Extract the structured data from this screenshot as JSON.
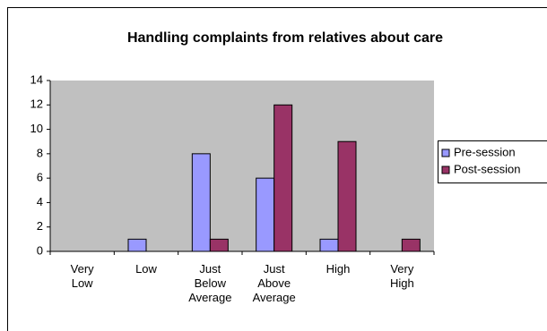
{
  "chart_data": {
    "type": "bar",
    "title": "Handling complaints from relatives about care",
    "categories": [
      "Very Low",
      "Low",
      "Just Below Average",
      "Just Above Average",
      "High",
      "Very High"
    ],
    "series": [
      {
        "name": "Pre-session",
        "color": "#9999ff",
        "values": [
          0,
          1,
          8,
          6,
          1,
          0
        ]
      },
      {
        "name": "Post-session",
        "color": "#993366",
        "values": [
          0,
          0,
          1,
          12,
          9,
          1
        ]
      }
    ],
    "ylim": [
      0,
      14
    ],
    "yticks": [
      0,
      2,
      4,
      6,
      8,
      10,
      12,
      14
    ],
    "grid": false,
    "legend": "right"
  }
}
